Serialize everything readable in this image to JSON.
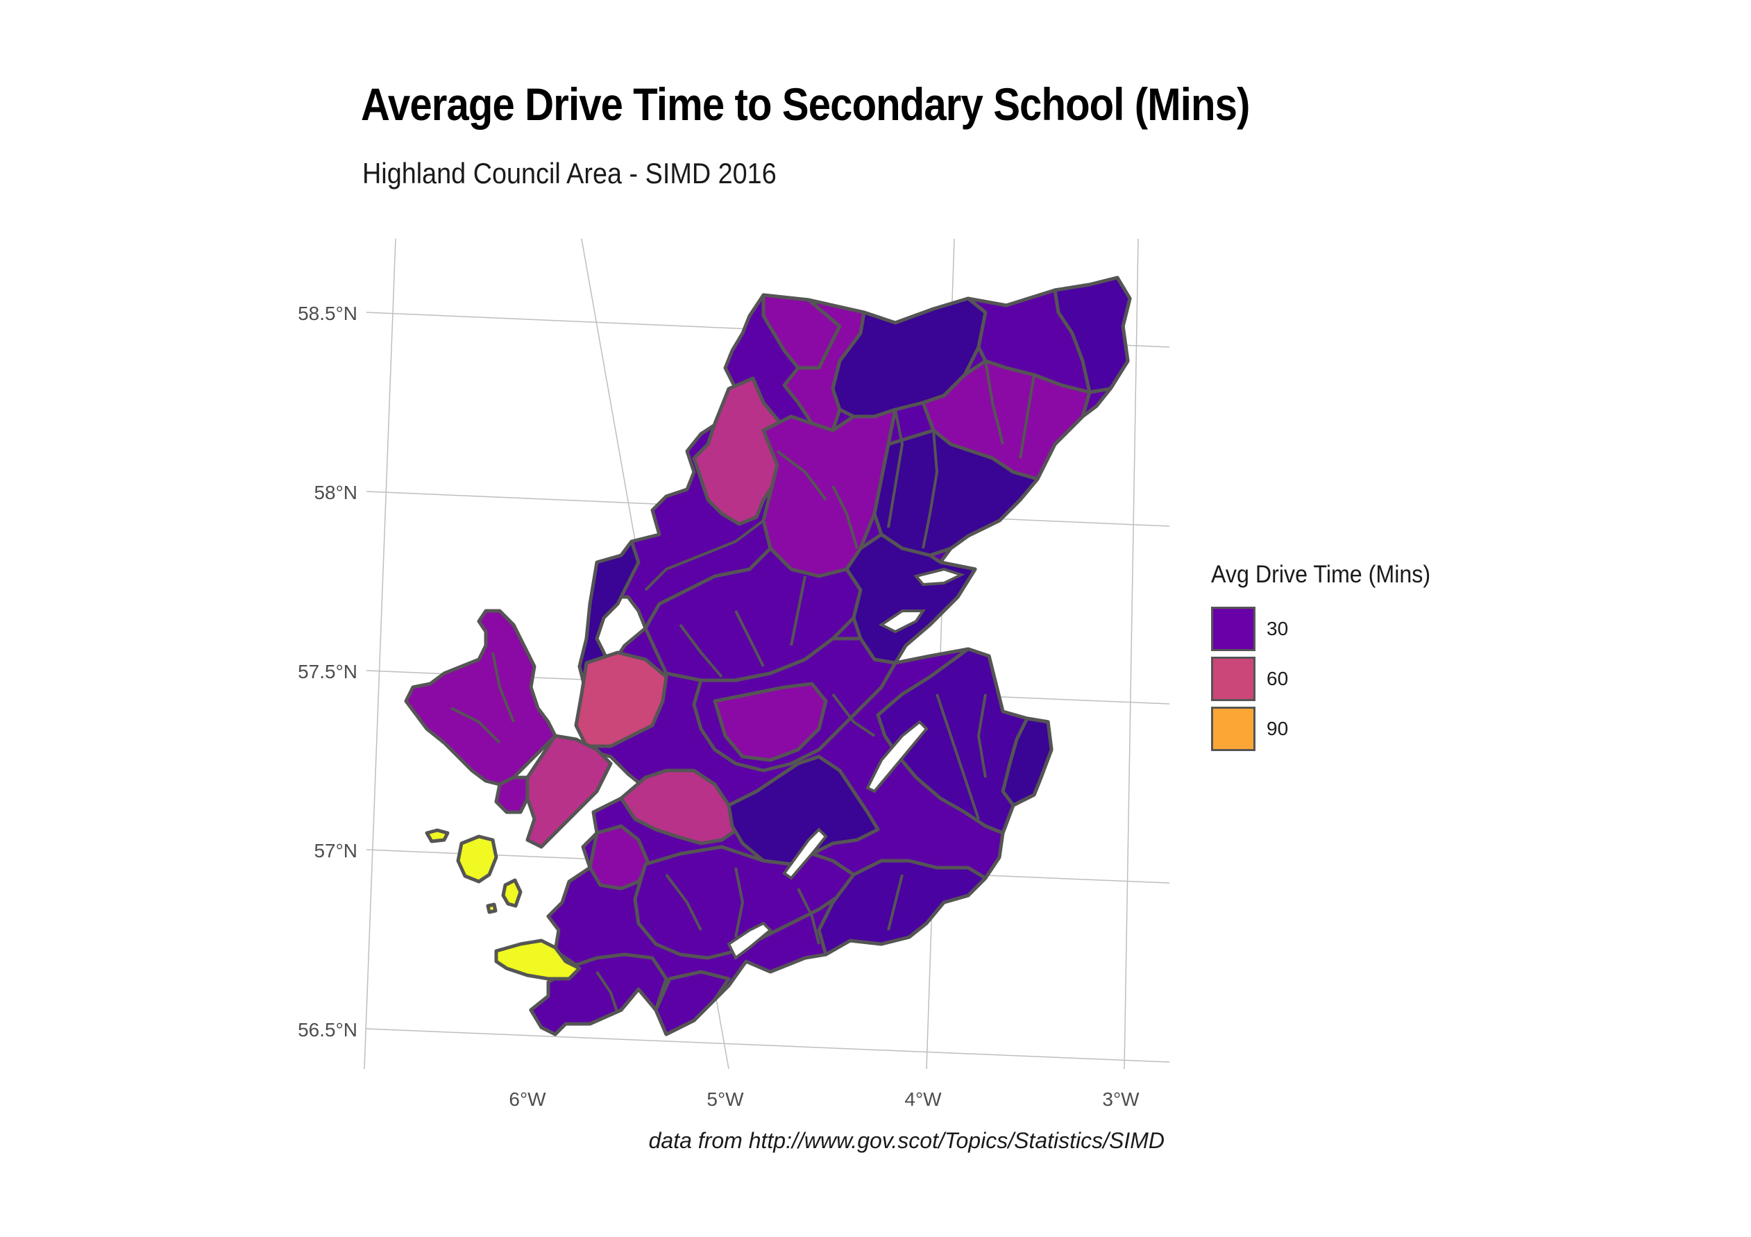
{
  "title": "Average Drive Time to Secondary School (Mins)",
  "subtitle": "Highland Council Area - SIMD 2016",
  "caption": "data from http://www.gov.scot/Topics/Statistics/SIMD",
  "legend": {
    "title": "Avg Drive Time (Mins)",
    "items": [
      {
        "label": "30",
        "color": "#6a00a8"
      },
      {
        "label": "60",
        "color": "#cb4679"
      },
      {
        "label": "90",
        "color": "#fca636"
      }
    ]
  },
  "axes": {
    "lat_ticks": [
      "58.5°N",
      "58°N",
      "57.5°N",
      "57°N",
      "56.5°N"
    ],
    "lon_ticks": [
      "6°W",
      "5°W",
      "4°W",
      "3°W"
    ]
  },
  "colors": {
    "deep_purple": "#3a0494",
    "purple": "#5c01a6",
    "magenta_purple": "#8b0aa5",
    "pink": "#b83289",
    "rose": "#cb4679",
    "yellow": "#f0f921",
    "border": "#555555",
    "graticule": "#bebebe"
  }
}
